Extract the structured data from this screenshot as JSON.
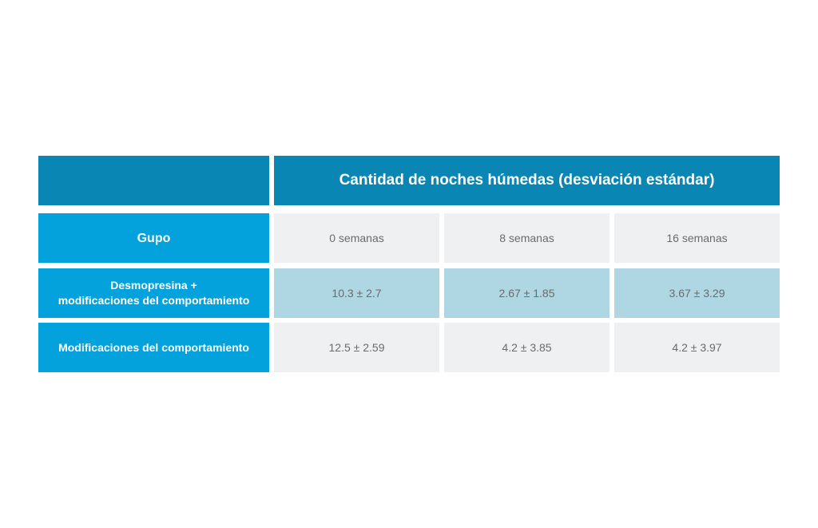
{
  "chart_data": {
    "type": "table",
    "title": "Cantidad de noches húmedas (desviación estándar)",
    "row_header": "Gupo",
    "columns": [
      "0 semanas",
      "8 semanas",
      "16 semanas"
    ],
    "rows": [
      {
        "label_line1": "Desmopresina +",
        "label_line2": "modificaciones del comportamiento",
        "values": [
          "10.3 ± 2.7",
          "2.67 ± 1.85",
          "3.67 ± 3.29"
        ]
      },
      {
        "label": "Modificaciones del comportamiento",
        "values": [
          "12.5 ± 2.59",
          "4.2 ± 3.85",
          "4.2 ± 3.97"
        ]
      }
    ]
  },
  "colors": {
    "header": "#0a86b4",
    "row_header": "#03a2dc",
    "cell_grey": "#eff0f2",
    "cell_highlight": "#aed6e3",
    "text_value": "#6b6b6b"
  }
}
